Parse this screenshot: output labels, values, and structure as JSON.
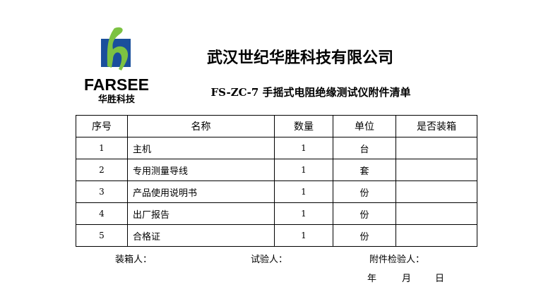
{
  "logo": {
    "text": "FARSEE",
    "subtext": "华胜科技",
    "colors": {
      "blue": "#1a4f9c",
      "green": "#7cc242"
    }
  },
  "title": "武汉世纪华胜科技有限公司",
  "subtitle": "FS-ZC-7 手摇式电阻绝缘测试仪附件清单",
  "table": {
    "headers": [
      "序号",
      "名称",
      "数量",
      "单位",
      "是否装箱"
    ],
    "rows": [
      {
        "no": "1",
        "name": "主机",
        "qty": "1",
        "unit": "台",
        "packed": ""
      },
      {
        "no": "2",
        "name": "专用测量导线",
        "qty": "1",
        "unit": "套",
        "packed": ""
      },
      {
        "no": "3",
        "name": "产品使用说明书",
        "qty": "1",
        "unit": "份",
        "packed": ""
      },
      {
        "no": "4",
        "name": "出厂报告",
        "qty": "1",
        "unit": "份",
        "packed": ""
      },
      {
        "no": "5",
        "name": "合格证",
        "qty": "1",
        "unit": "份",
        "packed": ""
      }
    ]
  },
  "footer": {
    "packer": "装箱人：",
    "tester": "试验人：",
    "inspector": "附件检验人：",
    "year": "年",
    "month": "月",
    "day": "日"
  }
}
